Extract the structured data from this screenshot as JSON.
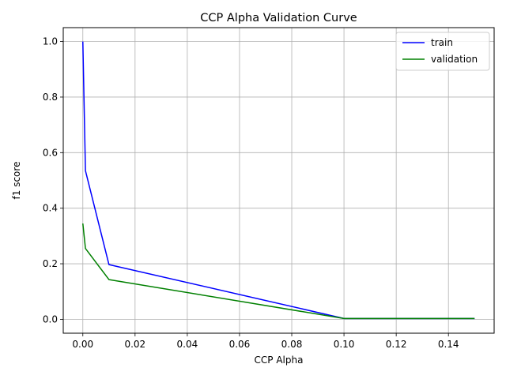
{
  "chart_data": {
    "type": "line",
    "title": "CCP Alpha Validation Curve",
    "xlabel": "CCP Alpha",
    "ylabel": "f1 score",
    "xlim": [
      -0.0075,
      0.1575
    ],
    "ylim": [
      -0.05,
      1.05
    ],
    "xticks": [
      0.0,
      0.02,
      0.04,
      0.06,
      0.08,
      0.1,
      0.12,
      0.14
    ],
    "xtick_labels": [
      "0.00",
      "0.02",
      "0.04",
      "0.06",
      "0.08",
      "0.10",
      "0.12",
      "0.14"
    ],
    "yticks": [
      0.0,
      0.2,
      0.4,
      0.6,
      0.8,
      1.0
    ],
    "ytick_labels": [
      "0.0",
      "0.2",
      "0.4",
      "0.6",
      "0.8",
      "1.0"
    ],
    "grid": true,
    "legend_position": "top-right",
    "x": [
      0.0,
      0.001,
      0.01,
      0.1,
      0.15
    ],
    "series": [
      {
        "name": "train",
        "color": "#0000ff",
        "values": [
          1.0,
          0.535,
          0.197,
          0.003,
          0.003
        ]
      },
      {
        "name": "validation",
        "color": "#008000",
        "values": [
          0.345,
          0.255,
          0.143,
          0.003,
          0.003
        ]
      }
    ]
  }
}
